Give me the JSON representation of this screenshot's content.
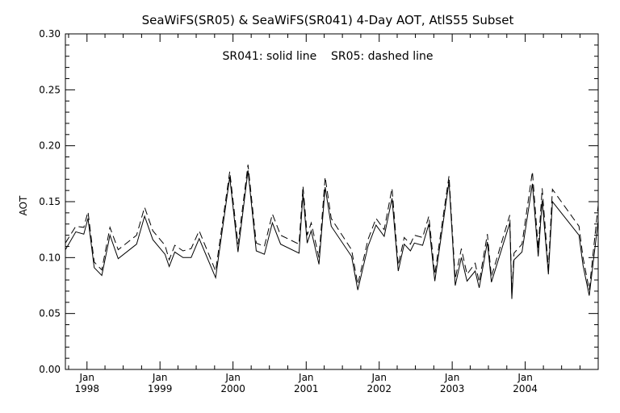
{
  "chart_data": {
    "type": "line",
    "title": "SeaWiFS(SR05) & SeaWiFS(SR041) 4-Day AOT, AtlS55 Subset",
    "annotation": "SR041: solid line    SR05: dashed line",
    "ylabel": "AOT",
    "xlabel": "",
    "ylim": [
      0.0,
      0.3
    ],
    "xlim": [
      "1997-09-15",
      "2004-12-31"
    ],
    "y_ticks": [
      "0.00",
      "0.05",
      "0.10",
      "0.15",
      "0.20",
      "0.25",
      "0.30"
    ],
    "x_ticks": [
      {
        "month": "Jan",
        "year": "1998",
        "date": "1998-01-01"
      },
      {
        "month": "Jan",
        "year": "1999",
        "date": "1999-01-01"
      },
      {
        "month": "Jan",
        "year": "2000",
        "date": "2000-01-01"
      },
      {
        "month": "Jan",
        "year": "2001",
        "date": "2001-01-01"
      },
      {
        "month": "Jan",
        "year": "2002",
        "date": "2002-01-01"
      },
      {
        "month": "Jan",
        "year": "2003",
        "date": "2003-01-01"
      },
      {
        "month": "Jan",
        "year": "2004",
        "date": "2004-01-01"
      }
    ],
    "grid": false,
    "legend": "annotation text near top",
    "series": [
      {
        "name": "SR041",
        "style": "solid",
        "color": "#000000",
        "points": [
          [
            "1997-09-15",
            0.107
          ],
          [
            "1997-11-06",
            0.123
          ],
          [
            "1997-12-16",
            0.121
          ],
          [
            "1998-01-06",
            0.135
          ],
          [
            "1998-02-06",
            0.091
          ],
          [
            "1998-03-16",
            0.084
          ],
          [
            "1998-04-26",
            0.12
          ],
          [
            "1998-06-06",
            0.099
          ],
          [
            "1998-09-06",
            0.112
          ],
          [
            "1998-10-16",
            0.137
          ],
          [
            "1998-11-26",
            0.116
          ],
          [
            "1999-01-26",
            0.103
          ],
          [
            "1999-02-16",
            0.092
          ],
          [
            "1999-03-16",
            0.105
          ],
          [
            "1999-04-26",
            0.1
          ],
          [
            "1999-06-06",
            0.1
          ],
          [
            "1999-07-16",
            0.117
          ],
          [
            "1999-10-06",
            0.082
          ],
          [
            "1999-12-16",
            0.172
          ],
          [
            "2000-01-26",
            0.105
          ],
          [
            "2000-03-16",
            0.178
          ],
          [
            "2000-04-26",
            0.106
          ],
          [
            "2000-06-06",
            0.103
          ],
          [
            "2000-07-16",
            0.131
          ],
          [
            "2000-08-26",
            0.112
          ],
          [
            "2000-11-26",
            0.104
          ],
          [
            "2000-12-16",
            0.157
          ],
          [
            "2001-01-06",
            0.113
          ],
          [
            "2001-01-26",
            0.124
          ],
          [
            "2001-03-06",
            0.094
          ],
          [
            "2001-04-06",
            0.163
          ],
          [
            "2001-05-06",
            0.128
          ],
          [
            "2001-08-16",
            0.101
          ],
          [
            "2001-09-16",
            0.071
          ],
          [
            "2001-11-06",
            0.11
          ],
          [
            "2001-12-16",
            0.129
          ],
          [
            "2002-01-26",
            0.119
          ],
          [
            "2002-03-06",
            0.153
          ],
          [
            "2002-04-06",
            0.088
          ],
          [
            "2002-05-06",
            0.112
          ],
          [
            "2002-06-06",
            0.106
          ],
          [
            "2002-06-26",
            0.113
          ],
          [
            "2002-08-06",
            0.111
          ],
          [
            "2002-09-06",
            0.13
          ],
          [
            "2002-10-06",
            0.079
          ],
          [
            "2002-12-16",
            0.168
          ],
          [
            "2003-01-16",
            0.075
          ],
          [
            "2003-02-16",
            0.1
          ],
          [
            "2003-03-16",
            0.079
          ],
          [
            "2003-04-26",
            0.088
          ],
          [
            "2003-05-16",
            0.073
          ],
          [
            "2003-06-26",
            0.114
          ],
          [
            "2003-07-16",
            0.078
          ],
          [
            "2003-10-16",
            0.131
          ],
          [
            "2003-10-26",
            0.063
          ],
          [
            "2003-11-06",
            0.098
          ],
          [
            "2003-12-16",
            0.105
          ],
          [
            "2004-02-06",
            0.166
          ],
          [
            "2004-03-06",
            0.101
          ],
          [
            "2004-03-26",
            0.151
          ],
          [
            "2004-04-26",
            0.085
          ],
          [
            "2004-05-16",
            0.15
          ],
          [
            "2004-09-26",
            0.12
          ],
          [
            "2004-10-16",
            0.093
          ],
          [
            "2004-11-16",
            0.066
          ],
          [
            "2004-12-31",
            0.133
          ]
        ]
      },
      {
        "name": "SR05",
        "style": "dashed",
        "color": "#000000",
        "points": [
          [
            "1997-09-15",
            0.113
          ],
          [
            "1997-11-06",
            0.128
          ],
          [
            "1997-12-16",
            0.127
          ],
          [
            "1998-01-06",
            0.141
          ],
          [
            "1998-02-06",
            0.096
          ],
          [
            "1998-03-16",
            0.089
          ],
          [
            "1998-04-26",
            0.127
          ],
          [
            "1998-06-06",
            0.107
          ],
          [
            "1998-09-06",
            0.12
          ],
          [
            "1998-10-16",
            0.145
          ],
          [
            "1998-11-26",
            0.124
          ],
          [
            "1999-01-26",
            0.111
          ],
          [
            "1999-02-16",
            0.098
          ],
          [
            "1999-03-16",
            0.111
          ],
          [
            "1999-04-26",
            0.106
          ],
          [
            "1999-06-06",
            0.108
          ],
          [
            "1999-07-16",
            0.124
          ],
          [
            "1999-10-06",
            0.088
          ],
          [
            "1999-12-16",
            0.177
          ],
          [
            "2000-01-26",
            0.112
          ],
          [
            "2000-03-16",
            0.183
          ],
          [
            "2000-04-26",
            0.113
          ],
          [
            "2000-06-06",
            0.11
          ],
          [
            "2000-07-16",
            0.139
          ],
          [
            "2000-08-26",
            0.12
          ],
          [
            "2000-11-26",
            0.112
          ],
          [
            "2000-12-16",
            0.164
          ],
          [
            "2001-01-06",
            0.12
          ],
          [
            "2001-01-26",
            0.131
          ],
          [
            "2001-03-06",
            0.1
          ],
          [
            "2001-04-06",
            0.172
          ],
          [
            "2001-05-06",
            0.135
          ],
          [
            "2001-08-16",
            0.107
          ],
          [
            "2001-09-16",
            0.076
          ],
          [
            "2001-11-06",
            0.116
          ],
          [
            "2001-12-16",
            0.135
          ],
          [
            "2002-01-26",
            0.125
          ],
          [
            "2002-03-06",
            0.162
          ],
          [
            "2002-04-06",
            0.093
          ],
          [
            "2002-05-06",
            0.118
          ],
          [
            "2002-06-06",
            0.112
          ],
          [
            "2002-06-26",
            0.12
          ],
          [
            "2002-08-06",
            0.118
          ],
          [
            "2002-09-06",
            0.137
          ],
          [
            "2002-10-06",
            0.085
          ],
          [
            "2002-12-16",
            0.173
          ],
          [
            "2003-01-16",
            0.081
          ],
          [
            "2003-02-16",
            0.108
          ],
          [
            "2003-03-16",
            0.085
          ],
          [
            "2003-04-26",
            0.095
          ],
          [
            "2003-05-16",
            0.078
          ],
          [
            "2003-06-26",
            0.121
          ],
          [
            "2003-07-16",
            0.083
          ],
          [
            "2003-10-16",
            0.138
          ],
          [
            "2003-10-26",
            0.067
          ],
          [
            "2003-11-06",
            0.104
          ],
          [
            "2003-12-16",
            0.112
          ],
          [
            "2004-02-06",
            0.177
          ],
          [
            "2004-03-06",
            0.108
          ],
          [
            "2004-03-26",
            0.162
          ],
          [
            "2004-04-26",
            0.09
          ],
          [
            "2004-05-16",
            0.161
          ],
          [
            "2004-09-26",
            0.128
          ],
          [
            "2004-10-16",
            0.1
          ],
          [
            "2004-11-16",
            0.071
          ],
          [
            "2004-12-31",
            0.147
          ]
        ]
      }
    ]
  }
}
